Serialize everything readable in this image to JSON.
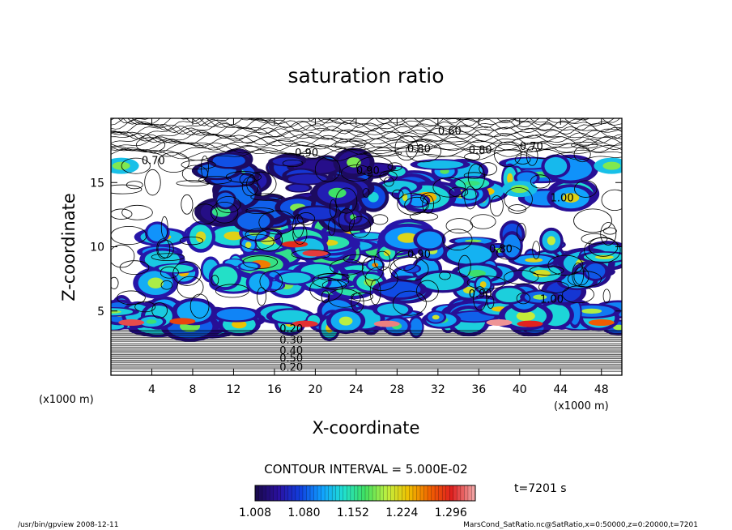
{
  "chart_data": {
    "type": "heatmap",
    "title": "saturation ratio",
    "xlabel": "X-coordinate",
    "ylabel": "Z-coordinate",
    "x_unit_left": "(x1000 m)",
    "x_unit_right": "(x1000 m)",
    "xlim": [
      0,
      50
    ],
    "ylim": [
      0,
      20
    ],
    "x_ticks": [
      4,
      8,
      12,
      16,
      20,
      24,
      28,
      32,
      36,
      40,
      44,
      48
    ],
    "y_ticks": [
      5,
      10,
      15
    ],
    "contour_interval_text": "CONTOUR INTERVAL = 5.000E-02",
    "time_text": "t=7201 s",
    "colorbar": {
      "min": 1.008,
      "max": 1.332,
      "tick_labels": [
        "1.008",
        "1.080",
        "1.152",
        "1.224",
        "1.296"
      ],
      "colors": [
        "#1a0a50",
        "#2a10a0",
        "#1040e0",
        "#10a0ff",
        "#20e0d0",
        "#40e060",
        "#c0f040",
        "#f0c000",
        "#f06000",
        "#e02020",
        "#f0a0a0"
      ]
    },
    "contour_labels": [
      "0.60",
      "0.70",
      "0.80",
      "0.90",
      "0.80",
      "0.70",
      "0.90",
      "1.00",
      "0.90",
      "0.80",
      "0.90",
      "1.00",
      "0.20",
      "0.30",
      "0.40",
      "0.50",
      "0.20"
    ],
    "footer_left": "/usr/bin/gpview   2008-12-11",
    "footer_right": "MarsCond_SatRatio.nc@SatRatio,x=0:50000,z=0:20000,t=7201"
  }
}
